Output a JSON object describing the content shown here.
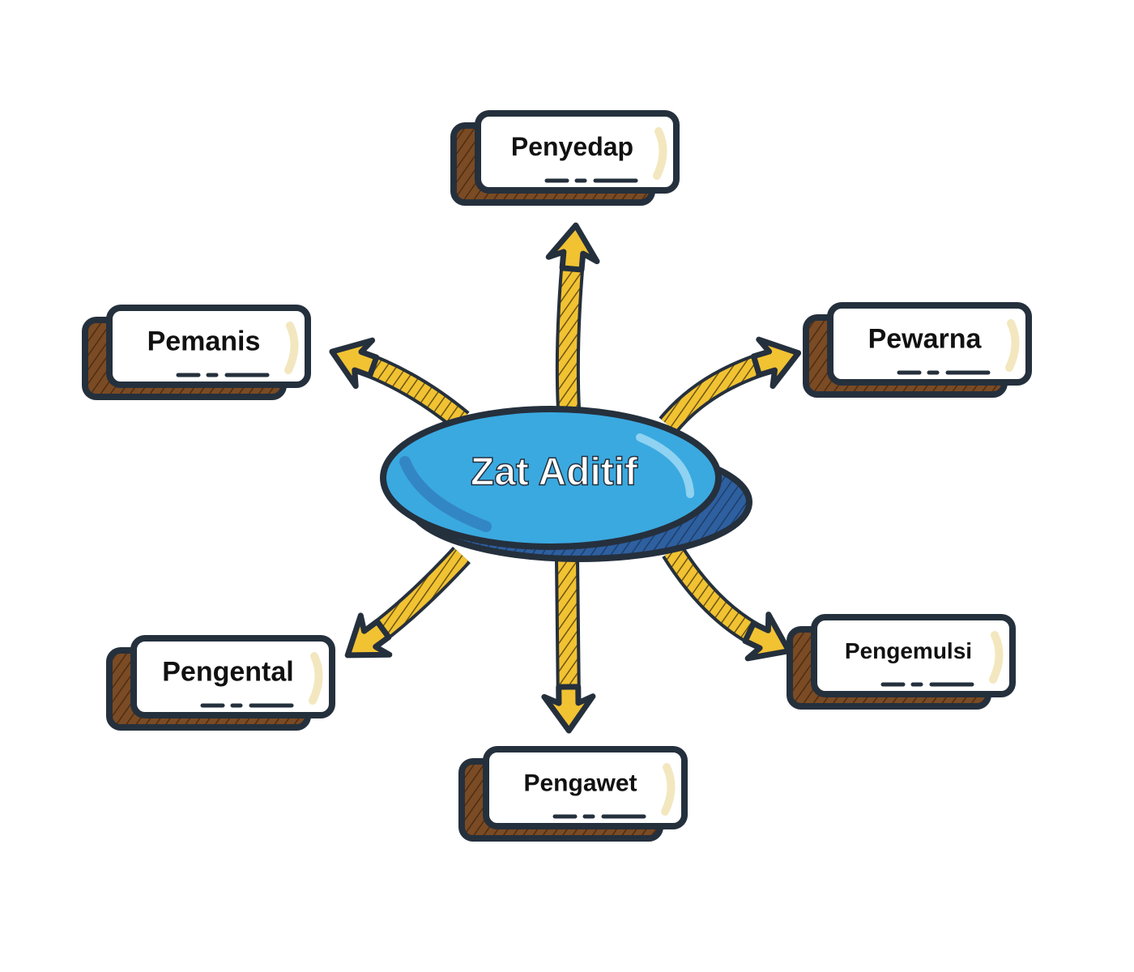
{
  "diagram": {
    "center": {
      "label": "Zat Aditif"
    },
    "nodes": [
      {
        "id": "penyedap",
        "label": "Penyedap"
      },
      {
        "id": "pewarna",
        "label": "Pewarna"
      },
      {
        "id": "pengemulsi",
        "label": "Pengemulsi"
      },
      {
        "id": "pengawet",
        "label": "Pengawet"
      },
      {
        "id": "pengental",
        "label": "Pengental"
      },
      {
        "id": "pemanis",
        "label": "Pemanis"
      }
    ]
  },
  "colors": {
    "outline": "#25303d",
    "card_shadow": "#7a4b24",
    "card_face": "#ffffff",
    "card_accent": "#f3e7bf",
    "arrow_fill": "#f1c232",
    "arrow_hatch": "#6b5410",
    "ellipse_fill": "#3aa9e0",
    "ellipse_shadow": "#2e5f9f",
    "ellipse_highlight": "#8fd2f1",
    "center_text": "#ffffff",
    "node_text": "#111111"
  }
}
